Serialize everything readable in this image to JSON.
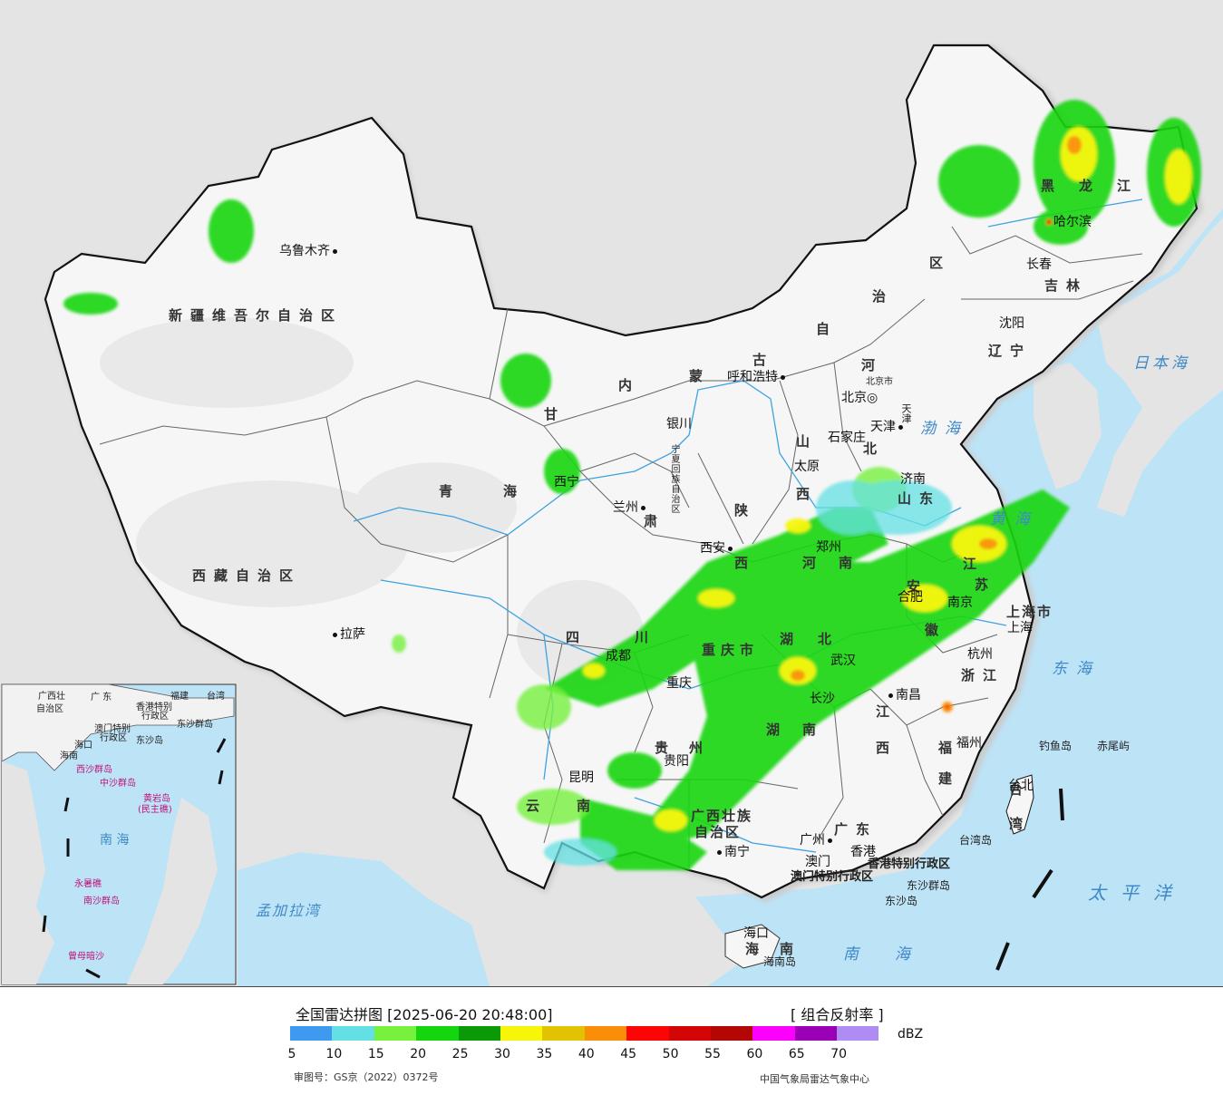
{
  "map": {
    "provinces": [
      {
        "id": "xinjiang",
        "text": "新疆维吾尔自治区"
      },
      {
        "id": "xizang",
        "text": "西藏自治区"
      },
      {
        "id": "qinghai1",
        "text": "青"
      },
      {
        "id": "qinghai2",
        "text": "海"
      },
      {
        "id": "gansu1",
        "text": "甘"
      },
      {
        "id": "gansu2",
        "text": "肃"
      },
      {
        "id": "neimeng1",
        "text": "内"
      },
      {
        "id": "neimeng2",
        "text": "蒙"
      },
      {
        "id": "neimeng3",
        "text": "古"
      },
      {
        "id": "neimeng4",
        "text": "自"
      },
      {
        "id": "neimeng5",
        "text": "治"
      },
      {
        "id": "neimeng6",
        "text": "区"
      },
      {
        "id": "heilongjiang1",
        "text": "黑"
      },
      {
        "id": "heilongjiang2",
        "text": "龙"
      },
      {
        "id": "heilongjiang3",
        "text": "江"
      },
      {
        "id": "jilin",
        "text": "吉林"
      },
      {
        "id": "liaoning",
        "text": "辽宁"
      },
      {
        "id": "hebei1",
        "text": "河"
      },
      {
        "id": "hebei2",
        "text": "北"
      },
      {
        "id": "shanxi1",
        "text": "山"
      },
      {
        "id": "shanxi2",
        "text": "西"
      },
      {
        "id": "shandong",
        "text": "山东"
      },
      {
        "id": "henan1",
        "text": "河"
      },
      {
        "id": "henan2",
        "text": "南"
      },
      {
        "id": "shaanxi1",
        "text": "陕"
      },
      {
        "id": "shaanxi2",
        "text": "西"
      },
      {
        "id": "sichuan1",
        "text": "四"
      },
      {
        "id": "sichuan2",
        "text": "川"
      },
      {
        "id": "chongqing",
        "text": "重庆市"
      },
      {
        "id": "hubei1",
        "text": "湖"
      },
      {
        "id": "hubei2",
        "text": "北"
      },
      {
        "id": "hunan1",
        "text": "湖"
      },
      {
        "id": "hunan2",
        "text": "南"
      },
      {
        "id": "anhui1",
        "text": "安"
      },
      {
        "id": "anhui2",
        "text": "徽"
      },
      {
        "id": "jiangsu1",
        "text": "江"
      },
      {
        "id": "jiangsu2",
        "text": "苏"
      },
      {
        "id": "zhejiang",
        "text": "浙江"
      },
      {
        "id": "jiangxi1",
        "text": "江"
      },
      {
        "id": "jiangxi2",
        "text": "西"
      },
      {
        "id": "fujian1",
        "text": "福"
      },
      {
        "id": "fujian2",
        "text": "建"
      },
      {
        "id": "guangdong",
        "text": "广东"
      },
      {
        "id": "guangxi1",
        "text": "广西壮族"
      },
      {
        "id": "guangxi2",
        "text": "自治区"
      },
      {
        "id": "guizhou1",
        "text": "贵"
      },
      {
        "id": "guizhou2",
        "text": "州"
      },
      {
        "id": "yunnan1",
        "text": "云"
      },
      {
        "id": "yunnan2",
        "text": "南"
      },
      {
        "id": "hainan1",
        "text": "海"
      },
      {
        "id": "hainan2",
        "text": "南"
      },
      {
        "id": "ningxia",
        "text": "宁夏回族自治区"
      },
      {
        "id": "shanghai",
        "text": "上海市"
      },
      {
        "id": "tianjin",
        "text": "天津"
      },
      {
        "id": "beijing",
        "text": "北京市"
      },
      {
        "id": "taiwan1",
        "text": "台"
      },
      {
        "id": "taiwan2",
        "text": "湾"
      },
      {
        "id": "hk",
        "text": "香港特别行政区"
      },
      {
        "id": "macau",
        "text": "澳门特别行政区"
      }
    ],
    "cities": [
      {
        "id": "urumqi",
        "text": "乌鲁木齐"
      },
      {
        "id": "lhasa",
        "text": "拉萨"
      },
      {
        "id": "xining",
        "text": "西宁"
      },
      {
        "id": "lanzhou",
        "text": "兰州"
      },
      {
        "id": "yinchuan",
        "text": "银川"
      },
      {
        "id": "hohhot",
        "text": "呼和浩特"
      },
      {
        "id": "beijing",
        "text": "北京"
      },
      {
        "id": "tianjin",
        "text": "天津"
      },
      {
        "id": "shijiazhuang",
        "text": "石家庄"
      },
      {
        "id": "taiyuan",
        "text": "太原"
      },
      {
        "id": "jinan",
        "text": "济南"
      },
      {
        "id": "zhengzhou",
        "text": "郑州"
      },
      {
        "id": "xian",
        "text": "西安"
      },
      {
        "id": "chengdu",
        "text": "成都"
      },
      {
        "id": "chongqing",
        "text": "重庆"
      },
      {
        "id": "wuhan",
        "text": "武汉"
      },
      {
        "id": "hefei",
        "text": "合肥"
      },
      {
        "id": "nanjing",
        "text": "南京"
      },
      {
        "id": "shanghai",
        "text": "上海"
      },
      {
        "id": "hangzhou",
        "text": "杭州"
      },
      {
        "id": "nanchang",
        "text": "南昌"
      },
      {
        "id": "changsha",
        "text": "长沙"
      },
      {
        "id": "fuzhou",
        "text": "福州"
      },
      {
        "id": "taibei",
        "text": "台北"
      },
      {
        "id": "guiyang",
        "text": "贵阳"
      },
      {
        "id": "kunming",
        "text": "昆明"
      },
      {
        "id": "nanning",
        "text": "南宁"
      },
      {
        "id": "guangzhou",
        "text": "广州"
      },
      {
        "id": "xianggang",
        "text": "香港"
      },
      {
        "id": "aomen",
        "text": "澳门"
      },
      {
        "id": "haikou",
        "text": "海口"
      },
      {
        "id": "harbin",
        "text": "哈尔滨"
      },
      {
        "id": "changchun",
        "text": "长春"
      },
      {
        "id": "shenyang",
        "text": "沈阳"
      }
    ],
    "seas": [
      {
        "id": "bohai",
        "text": "渤海"
      },
      {
        "id": "huanghai",
        "text": "黄海"
      },
      {
        "id": "donghai",
        "text": "东海"
      },
      {
        "id": "nanhai",
        "text": "南海"
      },
      {
        "id": "ribenhai",
        "text": "日本海"
      },
      {
        "id": "taipingyang",
        "text": "太平洋"
      },
      {
        "id": "mengjialawan",
        "text": "孟加拉湾"
      }
    ],
    "islands": [
      {
        "id": "diaoyu",
        "text": "钓鱼岛"
      },
      {
        "id": "chiwei",
        "text": "赤尾屿"
      },
      {
        "id": "taiwandao",
        "text": "台湾岛"
      },
      {
        "id": "dongsha",
        "text": "东沙群岛"
      },
      {
        "id": "dongshadao",
        "text": "东沙岛"
      },
      {
        "id": "hainandao",
        "text": "海南岛"
      }
    ],
    "inset": {
      "labels": [
        {
          "id": "i_guangxi",
          "text": "广西壮"
        },
        {
          "id": "i_guangxi2",
          "text": "自治区"
        },
        {
          "id": "i_guangdong",
          "text": "广 东"
        },
        {
          "id": "i_fujian",
          "text": "福建"
        },
        {
          "id": "i_taiwan",
          "text": "台湾"
        },
        {
          "id": "i_hk",
          "text": "香港特别"
        },
        {
          "id": "i_hk2",
          "text": "行政区"
        },
        {
          "id": "i_macau",
          "text": "澳门特别"
        },
        {
          "id": "i_macau2",
          "text": "行政区"
        },
        {
          "id": "i_dongsha",
          "text": "东沙群岛"
        },
        {
          "id": "i_dongsha2",
          "text": "东沙岛"
        },
        {
          "id": "i_hainan",
          "text": "海南"
        },
        {
          "id": "i_hainan2",
          "text": "海口"
        },
        {
          "id": "i_nanhai",
          "text": "南 海"
        }
      ],
      "islands": [
        {
          "id": "i_xisha",
          "text": "西沙群岛"
        },
        {
          "id": "i_zhongsha",
          "text": "中沙群岛"
        },
        {
          "id": "i_huangyan",
          "text": "黄岩岛"
        },
        {
          "id": "i_minzhu",
          "text": "(民主礁)"
        },
        {
          "id": "i_nansha",
          "text": "南沙群岛"
        },
        {
          "id": "i_yongshu",
          "text": "永暑礁"
        },
        {
          "id": "i_zengmu",
          "text": "曾母暗沙"
        }
      ]
    }
  },
  "footer": {
    "title": "全国雷达拼图 [2025-06-20 20:48:00]",
    "product": "[ 组合反射率 ]",
    "unit": "dBZ",
    "scale_labels": [
      "5",
      "10",
      "15",
      "20",
      "25",
      "30",
      "35",
      "40",
      "45",
      "50",
      "55",
      "60",
      "65",
      "70"
    ],
    "colors": [
      "#3d9aef",
      "#64e0e4",
      "#76f23e",
      "#14d60e",
      "#0a9a06",
      "#f7f609",
      "#e3c103",
      "#fa8e07",
      "#fb0505",
      "#d30505",
      "#b50606",
      "#fb00fb",
      "#9a00b6",
      "#ae8cf4"
    ],
    "approval": "审图号：GS京（2022）0372号",
    "agency": "中国气象局雷达气象中心"
  }
}
